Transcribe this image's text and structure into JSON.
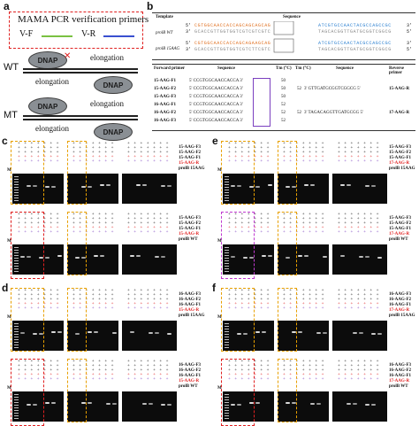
{
  "panel_letters": {
    "a": "a",
    "b": "b",
    "c": "c",
    "d": "d",
    "e": "e",
    "f": "f"
  },
  "panel_a": {
    "legend_title": "MAMA PCR verification primers",
    "vf": "V-F",
    "vr": "V-R",
    "vf_color": "#7ac142",
    "vr_color": "#3a4fd0",
    "wt": "WT",
    "mt": "MT",
    "dnap": "DNAP",
    "elongation": "elongation",
    "block_mark": "✕"
  },
  "panel_b": {
    "header_template": "Template",
    "header_sequence": "Sequence",
    "templates": [
      "prolB WT",
      "prolB 15AAG"
    ],
    "th_forward": "Forward primer",
    "th_sequence": "Sequence",
    "th_tm": "Tm (°C)",
    "th_tm2": "Tm (°C)",
    "th_sequence2": "Sequence",
    "th_reverse": "Reverse primer",
    "forward": [
      {
        "name": "15-AAG-F1",
        "seq": "5' CCGTGGCAACCACCA 3'",
        "tm": "50"
      },
      {
        "name": "15-AAG-F2",
        "seq": "5' CCGTGGCAACCACCA 3'",
        "tm": "50"
      },
      {
        "name": "15-AAG-F3",
        "seq": "5' CCGTGGCAACCACCA 3'",
        "tm": "50"
      },
      {
        "name": "16-AAG-F1",
        "seq": "5' CCGTGGCAACCACCA 3'",
        "tm": "52"
      },
      {
        "name": "16-AAG-F2",
        "seq": "5' CCGTGGCAACCACCA 3'",
        "tm": "52"
      },
      {
        "name": "16-AAG-F3",
        "seq": "5' CCGTGGCAACCACCA 3'",
        "tm": "52"
      }
    ],
    "reverse": [
      {
        "tm": "52",
        "seq": "3' GTTGATGCGGTCGGCG 5'",
        "name": "15-AAG-R"
      },
      {
        "tm": "52",
        "seq": "3' TAGACAGGTTGATGCGG 5'",
        "name": "17-AAG-R"
      }
    ]
  },
  "gels": {
    "c": {
      "top_rows": [
        "15-AAG-F3",
        "15-AAG-F2",
        "15-AAG-F1",
        "15-AAG-R",
        "prolB 15AAG"
      ],
      "bottom_rows": [
        "15-AAG-F3",
        "15-AAG-F2",
        "15-AAG-F1",
        "15-AAG-R",
        "prolB WT"
      ]
    },
    "d": {
      "top_rows": [
        "16-AAG-F3",
        "16-AAG-F2",
        "16-AAG-F1",
        "15-AAG-R",
        "prolB 15AAG"
      ],
      "bottom_rows": [
        "16-AAG-F3",
        "16-AAG-F2",
        "16-AAG-F1",
        "15-AAG-R",
        "prolB WT"
      ]
    },
    "e": {
      "top_rows": [
        "15-AAG-F3",
        "15-AAG-F2",
        "15-AAG-F1",
        "17-AAG-R",
        "prolB 15AAG"
      ],
      "bottom_rows": [
        "15-AAG-F3",
        "15-AAG-F2",
        "15-AAG-F1",
        "17-AAG-R",
        "prolB WT"
      ]
    },
    "f": {
      "top_rows": [
        "16-AAG-F3",
        "16-AAG-F2",
        "16-AAG-F1",
        "17-AAG-R",
        "prolB 15AAG"
      ],
      "bottom_rows": [
        "16-AAG-F3",
        "16-AAG-F2",
        "16-AAG-F1",
        "17-AAG-R",
        "prolB WT"
      ]
    },
    "marker": "M",
    "plus_minus_row": "+ + + + + + +"
  }
}
